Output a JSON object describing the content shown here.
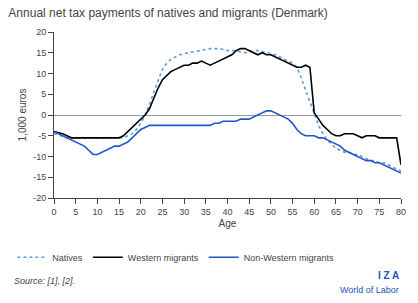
{
  "chart_data": {
    "type": "line",
    "title": "Annual net tax payments of natives and migrants (Denmark)",
    "xlabel": "Age",
    "ylabel": "1,000 euros",
    "x": [
      0,
      1,
      2,
      3,
      4,
      5,
      6,
      7,
      8,
      9,
      10,
      11,
      12,
      13,
      14,
      15,
      16,
      17,
      18,
      19,
      20,
      21,
      22,
      23,
      24,
      25,
      26,
      27,
      28,
      29,
      30,
      31,
      32,
      33,
      34,
      35,
      36,
      37,
      38,
      39,
      40,
      41,
      42,
      43,
      44,
      45,
      46,
      47,
      48,
      49,
      50,
      51,
      52,
      53,
      54,
      55,
      56,
      57,
      58,
      59,
      60,
      61,
      62,
      63,
      64,
      65,
      66,
      67,
      68,
      69,
      70,
      71,
      72,
      73,
      74,
      75,
      76,
      77,
      78,
      79,
      80
    ],
    "series": [
      {
        "name": "Natives",
        "color": "#5b9bd5",
        "line_style": "dotted",
        "values": [
          -4.5,
          -4.8,
          -5.2,
          -5.5,
          -5.5,
          -5.5,
          -5.5,
          -5.5,
          -5.5,
          -5.5,
          -5.5,
          -5.5,
          -5.5,
          -5.5,
          -5.5,
          -5.5,
          -5.5,
          -5.0,
          -4.5,
          -3.5,
          -2.0,
          0.0,
          2.5,
          5.5,
          8.5,
          11.0,
          12.5,
          13.5,
          14.0,
          14.5,
          14.8,
          15.0,
          15.2,
          15.5,
          15.7,
          15.8,
          16.0,
          16.0,
          16.0,
          15.8,
          15.5,
          15.5,
          15.5,
          15.2,
          15.0,
          15.2,
          15.5,
          15.5,
          15.3,
          15.0,
          14.8,
          14.5,
          14.0,
          13.5,
          13.0,
          12.5,
          11.5,
          9.0,
          6.0,
          3.0,
          0.0,
          -2.5,
          -4.5,
          -6.0,
          -7.0,
          -8.0,
          -8.5,
          -9.0,
          -9.0,
          -9.5,
          -9.5,
          -10.0,
          -10.5,
          -11.0,
          -11.0,
          -11.5,
          -11.5,
          -12.0,
          -12.5,
          -13.0,
          -13.5
        ]
      },
      {
        "name": "Western migrants",
        "color": "#000000",
        "line_style": "solid",
        "values": [
          -4.0,
          -4.2,
          -4.5,
          -5.0,
          -5.5,
          -5.5,
          -5.5,
          -5.5,
          -5.5,
          -5.5,
          -5.5,
          -5.5,
          -5.5,
          -5.5,
          -5.5,
          -5.5,
          -5.0,
          -4.0,
          -3.0,
          -2.0,
          -1.0,
          0.0,
          1.5,
          4.0,
          6.5,
          8.5,
          9.5,
          10.5,
          11.0,
          11.5,
          12.0,
          12.0,
          12.5,
          12.5,
          13.0,
          12.5,
          12.0,
          12.5,
          13.0,
          13.5,
          14.0,
          14.5,
          15.5,
          16.0,
          16.0,
          15.5,
          15.0,
          14.5,
          15.0,
          14.5,
          14.5,
          14.0,
          13.5,
          13.0,
          12.5,
          12.0,
          11.5,
          11.5,
          12.0,
          11.5,
          0.5,
          -1.0,
          -2.5,
          -3.5,
          -4.5,
          -5.0,
          -5.0,
          -4.5,
          -4.5,
          -4.5,
          -5.0,
          -5.5,
          -5.0,
          -5.0,
          -5.0,
          -5.5,
          -5.5,
          -5.5,
          -5.5,
          -5.5,
          -12.0
        ]
      },
      {
        "name": "Non-Western migrants",
        "color": "#2255cc",
        "line_style": "solid",
        "values": [
          -4.0,
          -4.5,
          -5.0,
          -5.5,
          -6.0,
          -6.5,
          -7.0,
          -7.5,
          -8.5,
          -9.5,
          -9.5,
          -9.0,
          -8.5,
          -8.0,
          -7.5,
          -7.5,
          -7.0,
          -6.5,
          -5.5,
          -4.5,
          -3.5,
          -3.0,
          -2.5,
          -2.5,
          -2.5,
          -2.5,
          -2.5,
          -2.5,
          -2.5,
          -2.5,
          -2.5,
          -2.5,
          -2.5,
          -2.5,
          -2.5,
          -2.5,
          -2.5,
          -2.0,
          -2.0,
          -1.5,
          -1.5,
          -1.5,
          -1.5,
          -1.0,
          -1.0,
          -1.0,
          -0.5,
          0.0,
          0.5,
          1.0,
          1.0,
          0.5,
          0.0,
          -0.5,
          -1.0,
          -2.0,
          -3.5,
          -4.5,
          -5.0,
          -5.0,
          -5.0,
          -5.5,
          -5.5,
          -6.0,
          -6.5,
          -7.0,
          -7.5,
          -8.5,
          -9.0,
          -9.5,
          -10.0,
          -10.5,
          -11.0,
          -11.0,
          -11.5,
          -11.5,
          -12.0,
          -12.5,
          -13.0,
          -13.5,
          -14.0
        ]
      }
    ],
    "xlim": [
      0,
      80
    ],
    "ylim": [
      -20,
      20
    ],
    "xticks": [
      0,
      5,
      10,
      15,
      20,
      25,
      30,
      35,
      40,
      45,
      50,
      55,
      60,
      65,
      70,
      75,
      80
    ],
    "yticks": [
      -20,
      -15,
      -10,
      -5,
      0,
      5,
      10,
      15,
      20
    ],
    "grid": false,
    "legend": "bottom",
    "annotations": [
      {
        "text": "Source: [1], [2]."
      },
      {
        "text": "I Z A",
        "color": "#2255bb"
      },
      {
        "text": "World of Labor",
        "color": "#2255bb"
      }
    ]
  }
}
